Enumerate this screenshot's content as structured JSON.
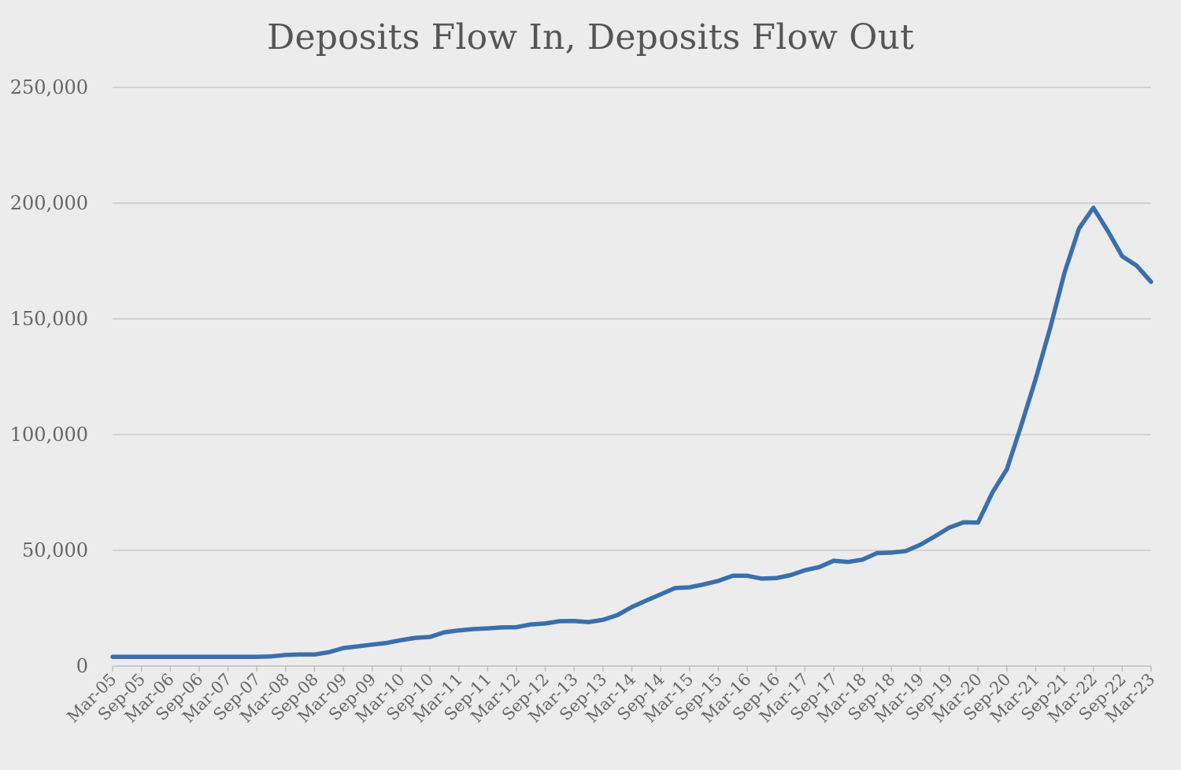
{
  "chart_data": {
    "type": "line",
    "title": "Deposits Flow In, Deposits Flow Out",
    "xlabel": "",
    "ylabel": "",
    "ylim": [
      0,
      250000
    ],
    "yticks": [
      0,
      50000,
      100000,
      150000,
      200000,
      250000
    ],
    "ytick_labels": [
      "0",
      "50,000",
      "100,000",
      "150,000",
      "200,000",
      "250,000"
    ],
    "xtick_labels": [
      "Mar-05",
      "Sep-05",
      "Mar-06",
      "Sep-06",
      "Mar-07",
      "Sep-07",
      "Mar-08",
      "Sep-08",
      "Mar-09",
      "Sep-09",
      "Mar-10",
      "Sep-10",
      "Mar-11",
      "Sep-11",
      "Mar-12",
      "Sep-12",
      "Mar-13",
      "Sep-13",
      "Mar-14",
      "Sep-14",
      "Mar-15",
      "Sep-15",
      "Mar-16",
      "Sep-16",
      "Mar-17",
      "Sep-17",
      "Mar-18",
      "Sep-18",
      "Mar-19",
      "Sep-19",
      "Mar-20",
      "Sep-20",
      "Mar-21",
      "Sep-21",
      "Mar-22",
      "Sep-22",
      "Mar-23"
    ],
    "grid": "horizontal",
    "legend": "none",
    "line_color": "#3a6fad",
    "series": [
      {
        "x": [
          "Mar-05",
          "Jun-05",
          "Sep-05",
          "Dec-05",
          "Mar-06",
          "Jun-06",
          "Sep-06",
          "Dec-06",
          "Mar-07",
          "Jun-07",
          "Sep-07",
          "Dec-07",
          "Mar-08",
          "Jun-08",
          "Sep-08",
          "Dec-08",
          "Mar-09",
          "Jun-09",
          "Sep-09",
          "Dec-09",
          "Mar-10",
          "Jun-10",
          "Sep-10",
          "Dec-10",
          "Mar-11",
          "Jun-11",
          "Sep-11",
          "Dec-11",
          "Mar-12",
          "Jun-12",
          "Sep-12",
          "Dec-12",
          "Mar-13",
          "Jun-13",
          "Sep-13",
          "Dec-13",
          "Mar-14",
          "Jun-14",
          "Sep-14",
          "Dec-14",
          "Mar-15",
          "Jun-15",
          "Sep-15",
          "Dec-15",
          "Mar-16",
          "Jun-16",
          "Sep-16",
          "Dec-16",
          "Mar-17",
          "Jun-17",
          "Sep-17",
          "Dec-17",
          "Mar-18",
          "Jun-18",
          "Sep-18",
          "Dec-18",
          "Mar-19",
          "Jun-19",
          "Sep-19",
          "Dec-19",
          "Mar-20",
          "Jun-20",
          "Sep-20",
          "Dec-20",
          "Mar-21",
          "Jun-21",
          "Sep-21",
          "Dec-21",
          "Mar-22",
          "Jun-22",
          "Sep-22",
          "Dec-22",
          "Mar-23"
        ],
        "values": [
          4000,
          4000,
          4000,
          4000,
          4000,
          4000,
          4000,
          4000,
          4000,
          4000,
          4000,
          4200,
          4800,
          5000,
          5000,
          6000,
          7800,
          8500,
          9300,
          10000,
          11200,
          12200,
          12600,
          14600,
          15400,
          16000,
          16300,
          16700,
          16800,
          18000,
          18400,
          19400,
          19500,
          19000,
          20000,
          22000,
          25500,
          28300,
          31000,
          33700,
          34000,
          35300,
          36800,
          39000,
          39000,
          37800,
          38000,
          39300,
          41400,
          42800,
          45500,
          45000,
          46000,
          48800,
          49000,
          49700,
          52400,
          56000,
          59800,
          62100,
          62000,
          75000,
          85000,
          104000,
          124000,
          146000,
          170000,
          189000,
          198000,
          188000,
          177000,
          173000,
          166000
        ]
      }
    ]
  }
}
